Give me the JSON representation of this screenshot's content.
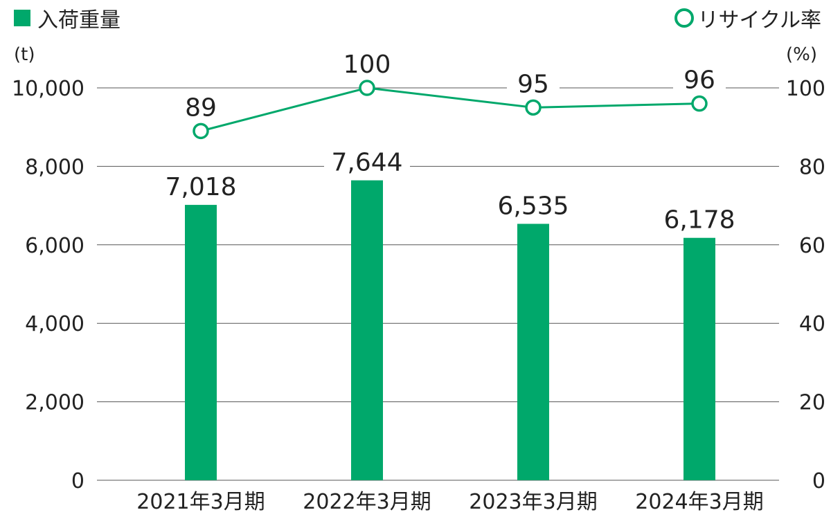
{
  "colors": {
    "bar": "#00a86b",
    "line": "#00a86b",
    "grid": "#555555",
    "text": "#222222"
  },
  "legend": {
    "bar_label": "入荷重量",
    "line_label": "リサイクル率"
  },
  "units": {
    "left": "(t)",
    "right": "(%)"
  },
  "chart_data": {
    "type": "bar+line",
    "categories": [
      "2021年3月期",
      "2022年3月期",
      "2023年3月期",
      "2024年3月期"
    ],
    "series": [
      {
        "name": "入荷重量",
        "type": "bar",
        "axis": "left",
        "values": [
          7018,
          7644,
          6535,
          6178
        ],
        "labels": [
          "7,018",
          "7,644",
          "6,535",
          "6,178"
        ]
      },
      {
        "name": "リサイクル率",
        "type": "line",
        "axis": "right",
        "values": [
          89,
          100,
          95,
          96
        ],
        "labels": [
          "89",
          "100",
          "95",
          "96"
        ]
      }
    ],
    "left_axis": {
      "ylim": [
        0,
        10000
      ],
      "ticks": [
        0,
        2000,
        4000,
        6000,
        8000,
        10000
      ],
      "tick_labels": [
        "0",
        "2,000",
        "4,000",
        "6,000",
        "8,000",
        "10,000"
      ]
    },
    "right_axis": {
      "ylim": [
        0,
        100
      ],
      "ticks": [
        0,
        20,
        40,
        60,
        80,
        100
      ],
      "tick_labels": [
        "0",
        "20",
        "40",
        "60",
        "80",
        "100"
      ]
    },
    "grid": true,
    "legend_position": "top"
  }
}
